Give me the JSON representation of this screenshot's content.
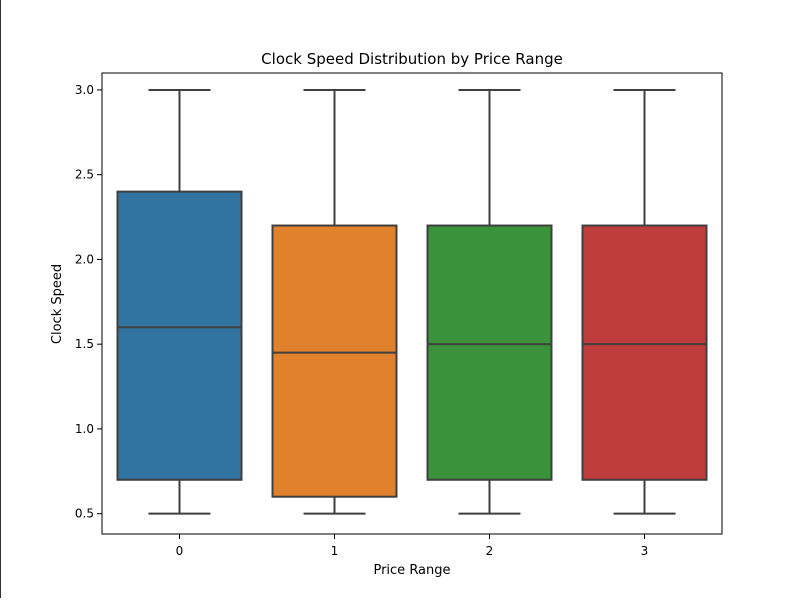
{
  "chart_data": {
    "type": "boxplot",
    "title": "Clock Speed Distribution by Price Range",
    "xlabel": "Price Range",
    "ylabel": "Clock Speed",
    "categories": [
      "0",
      "1",
      "2",
      "3"
    ],
    "ylim": [
      0.38,
      3.1
    ],
    "yticks": [
      0.5,
      1.0,
      1.5,
      2.0,
      2.5,
      3.0
    ],
    "ytick_labels": [
      "0.5",
      "1.0",
      "1.5",
      "2.0",
      "2.5",
      "3.0"
    ],
    "grid": false,
    "boxes": [
      {
        "category": "0",
        "min": 0.5,
        "q1": 0.7,
        "median": 1.6,
        "q3": 2.4,
        "max": 3.0,
        "color": "#3274a1"
      },
      {
        "category": "1",
        "min": 0.5,
        "q1": 0.6,
        "median": 1.45,
        "q3": 2.2,
        "max": 3.0,
        "color": "#e1812c"
      },
      {
        "category": "2",
        "min": 0.5,
        "q1": 0.7,
        "median": 1.5,
        "q3": 2.2,
        "max": 3.0,
        "color": "#3a923a"
      },
      {
        "category": "3",
        "min": 0.5,
        "q1": 0.7,
        "median": 1.5,
        "q3": 2.2,
        "max": 3.0,
        "color": "#c03d3e"
      }
    ]
  }
}
